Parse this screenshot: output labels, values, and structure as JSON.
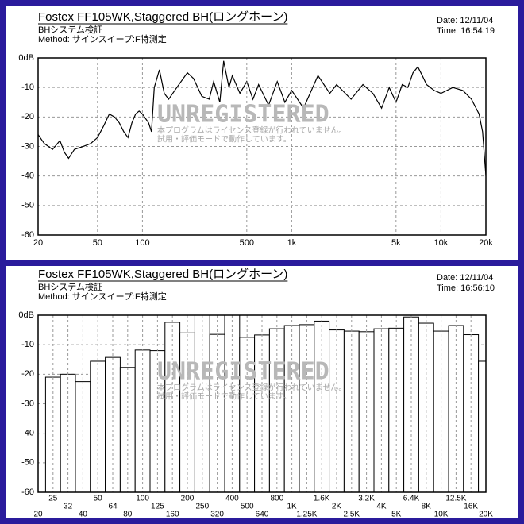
{
  "chart_data": [
    {
      "type": "line",
      "title": "Fostex FF105WK,Staggered BH(ロングホーン)",
      "subtitle": "BHシステム検証",
      "method": "Method: サインスイープ:F特測定",
      "date": "Date: 12/11/04",
      "time": "Time: 16:54:19",
      "watermark": "UNREGISTERED",
      "notice": [
        "本プログラムはライセンス登録が行われていません。",
        "試用・評価モードで動作しています。"
      ],
      "x_scale": "log",
      "xlim": [
        20,
        20000
      ],
      "xticks": [
        20,
        50,
        100,
        500,
        {
          "value": 1000,
          "label": "1k"
        },
        {
          "value": 5000,
          "label": "5k"
        },
        {
          "value": 10000,
          "label": "10k"
        },
        {
          "value": 20000,
          "label": "20k"
        }
      ],
      "ylim": [
        -60,
        0
      ],
      "yticks": [
        {
          "value": 0,
          "label": "0dB"
        },
        -10,
        -20,
        -30,
        -40,
        -50,
        -60
      ],
      "grid": true,
      "x": [
        20,
        22,
        25,
        28,
        30,
        32,
        35,
        40,
        45,
        50,
        55,
        60,
        65,
        70,
        75,
        80,
        85,
        90,
        95,
        100,
        110,
        115,
        120,
        130,
        140,
        150,
        170,
        200,
        220,
        250,
        280,
        300,
        330,
        350,
        380,
        400,
        450,
        500,
        550,
        600,
        700,
        800,
        900,
        1000,
        1200,
        1500,
        1800,
        2000,
        2500,
        3000,
        3500,
        4000,
        4500,
        5000,
        5500,
        6000,
        6500,
        7000,
        7500,
        8000,
        9000,
        10000,
        12000,
        14000,
        16000,
        18000,
        19000,
        20000
      ],
      "series": [
        {
          "name": "F特",
          "color": "#000000",
          "values": [
            -26,
            -29,
            -31,
            -28,
            -32,
            -34,
            -31,
            -30,
            -29,
            -27,
            -23,
            -19,
            -20,
            -22,
            -25,
            -27,
            -22,
            -19,
            -18,
            -19,
            -22,
            -25,
            -10,
            -4,
            -12,
            -14,
            -10,
            -5,
            -7,
            -13,
            -14,
            -8,
            -15,
            -1,
            -10,
            -6,
            -12,
            -8,
            -14,
            -9,
            -16,
            -8,
            -15,
            -11,
            -17,
            -6,
            -12,
            -9,
            -14,
            -9,
            -12,
            -17,
            -10,
            -15,
            -9,
            -10,
            -5,
            -3,
            -6,
            -9,
            -11,
            -12,
            -10,
            -11,
            -14,
            -19,
            -25,
            -40
          ]
        }
      ]
    },
    {
      "type": "bar",
      "title": "Fostex FF105WK,Staggered BH(ロングホーン)",
      "subtitle": "BHシステム検証",
      "method": "Method: サインスイープ:F特測定",
      "date": "Date: 12/11/04",
      "time": "Time: 16:56:10",
      "watermark": "UNREGISTERED",
      "notice": [
        "本プログラムはライセンス登録が行われていません。",
        "試用・評価モードで動作しています。"
      ],
      "ylim": [
        -60,
        0
      ],
      "yticks": [
        {
          "value": 0,
          "label": "0dB"
        },
        -10,
        -20,
        -30,
        -40,
        -50,
        -60
      ],
      "grid": true,
      "color": "#ffffff",
      "categories": [
        "20",
        "25",
        "32",
        "40",
        "50",
        "64",
        "80",
        "100",
        "125",
        "160",
        "200",
        "250",
        "320",
        "400",
        "500",
        "640",
        "800",
        "1K",
        "1.25K",
        "1.6K",
        "2K",
        "2.5K",
        "3.2K",
        "4K",
        "5K",
        "6.4K",
        "8K",
        "10K",
        "12.5K",
        "16K",
        "20K"
      ],
      "values": [
        null,
        -21,
        -20,
        -22.5,
        -15.6,
        -14.3,
        -17.7,
        -11.8,
        -12,
        -2.4,
        -6,
        0,
        -6.5,
        0,
        -7.5,
        -6.7,
        -4.6,
        -3.5,
        -3.2,
        -2,
        -5,
        -5.4,
        -5.6,
        -4.6,
        -4.4,
        -0.6,
        -2.7,
        -5.4,
        -3.5,
        -6.6,
        -15.6
      ]
    }
  ]
}
